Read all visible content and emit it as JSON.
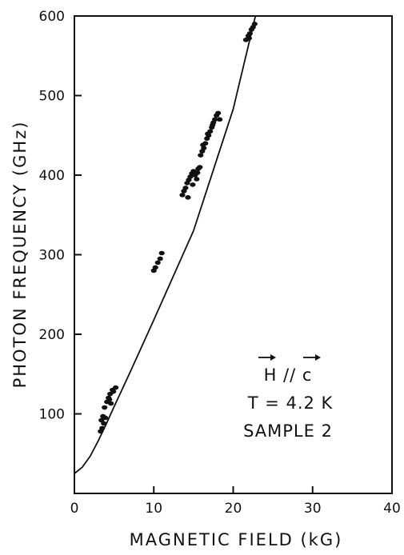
{
  "chart_data": {
    "type": "scatter",
    "title": "",
    "xlabel": "MAGNETIC FIELD (kG)",
    "ylabel": "PHOTON FREQUENCY (GHz)",
    "xlim": [
      0,
      40
    ],
    "ylim": [
      0,
      600
    ],
    "x_ticks": [
      0,
      10,
      20,
      30,
      40
    ],
    "x_tick_labels": [
      "0",
      "10",
      "20",
      "30",
      "40"
    ],
    "y_ticks": [
      100,
      200,
      300,
      400,
      500,
      600
    ],
    "y_tick_labels": [
      "100",
      "200",
      "300",
      "400",
      "500",
      "600"
    ],
    "grid": false,
    "annotation": {
      "field_label": "H // c",
      "temperature": "T = 4.2 K",
      "sample": "SAMPLE 2"
    },
    "series": [
      {
        "kind": "points",
        "x": [
          3.3,
          3.5,
          3.4,
          3.6,
          3.7,
          3.9,
          3.8,
          4.1,
          4.3,
          4.5,
          4.6,
          4.8,
          4.4,
          4.9,
          5.2,
          10.0,
          10.2,
          10.5,
          10.8,
          11.0,
          13.6,
          13.8,
          14.0,
          14.2,
          14.4,
          14.6,
          14.8,
          15.0,
          15.2,
          15.4,
          15.6,
          15.8,
          14.3,
          14.9,
          15.5,
          15.9,
          16.1,
          16.3,
          16.5,
          16.7,
          16.9,
          17.1,
          17.3,
          17.5,
          17.7,
          17.9,
          18.1,
          18.3,
          16.2,
          16.8,
          17.4,
          21.6,
          21.9,
          22.1,
          22.3,
          22.5,
          22.7,
          22.0
        ],
        "y": [
          78,
          82,
          92,
          97,
          88,
          95,
          108,
          115,
          120,
          125,
          113,
          130,
          118,
          128,
          133,
          280,
          284,
          290,
          295,
          302,
          375,
          380,
          384,
          390,
          394,
          398,
          402,
          405,
          400,
          395,
          408,
          410,
          372,
          388,
          403,
          425,
          430,
          434,
          440,
          446,
          450,
          455,
          460,
          466,
          470,
          475,
          478,
          470,
          438,
          452,
          463,
          570,
          575,
          578,
          583,
          586,
          590,
          572
        ]
      },
      {
        "kind": "fit-line",
        "x": [
          0,
          1,
          2,
          3,
          4,
          5,
          7,
          10,
          15,
          20,
          22.8
        ],
        "y": [
          25,
          33,
          47,
          66,
          87,
          109,
          152,
          218,
          330,
          483,
          600
        ]
      }
    ]
  }
}
